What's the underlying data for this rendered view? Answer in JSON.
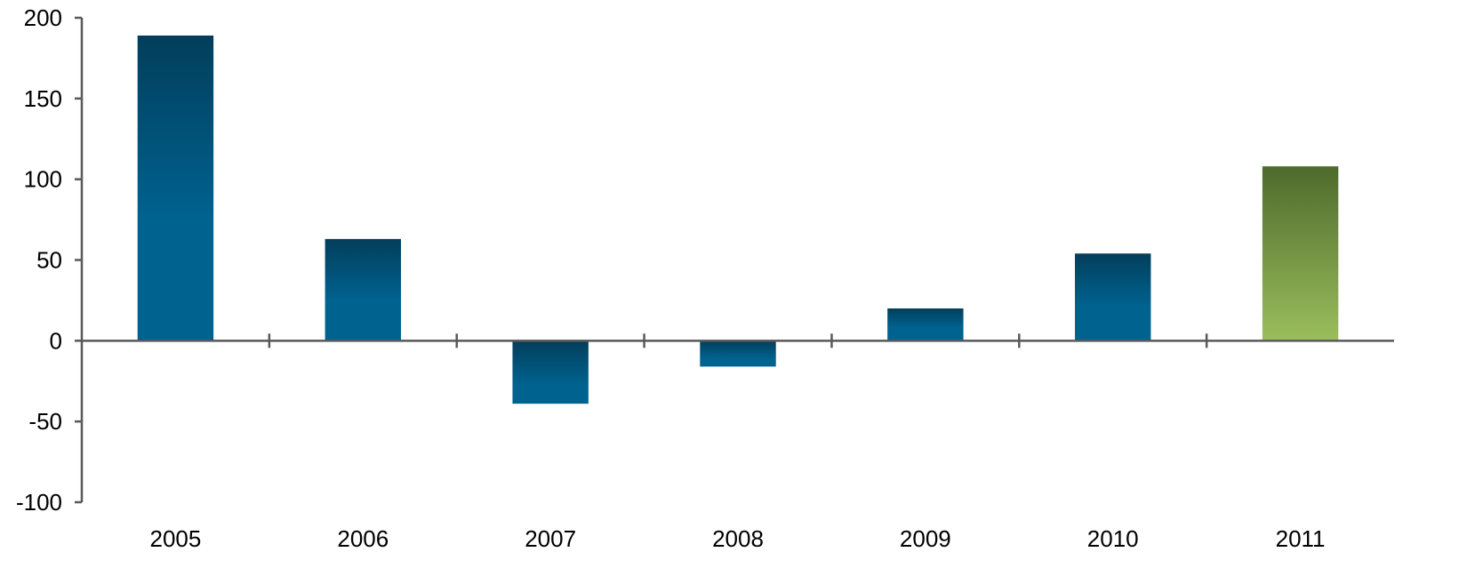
{
  "chart_data": {
    "type": "bar",
    "title": "",
    "xlabel": "",
    "ylabel": "",
    "categories": [
      "2005",
      "2006",
      "2007",
      "2008",
      "2009",
      "2010",
      "2011"
    ],
    "values": [
      189,
      63,
      -39,
      -16,
      20,
      54,
      108
    ],
    "highlight_index": 6,
    "ylim": [
      -100,
      200
    ],
    "yticks": [
      200,
      150,
      100,
      50,
      0,
      -50,
      -100
    ],
    "ytick_labels": [
      "200",
      "150",
      "100",
      "50",
      "0",
      "-50",
      "-100"
    ],
    "grid": false,
    "legend": "none",
    "colors": {
      "bar_dark": "#023E5B",
      "bar_light": "#00628F",
      "highlight_dark": "#4E6A2C",
      "highlight_light": "#9BBE5C",
      "axis": "#595959"
    }
  }
}
